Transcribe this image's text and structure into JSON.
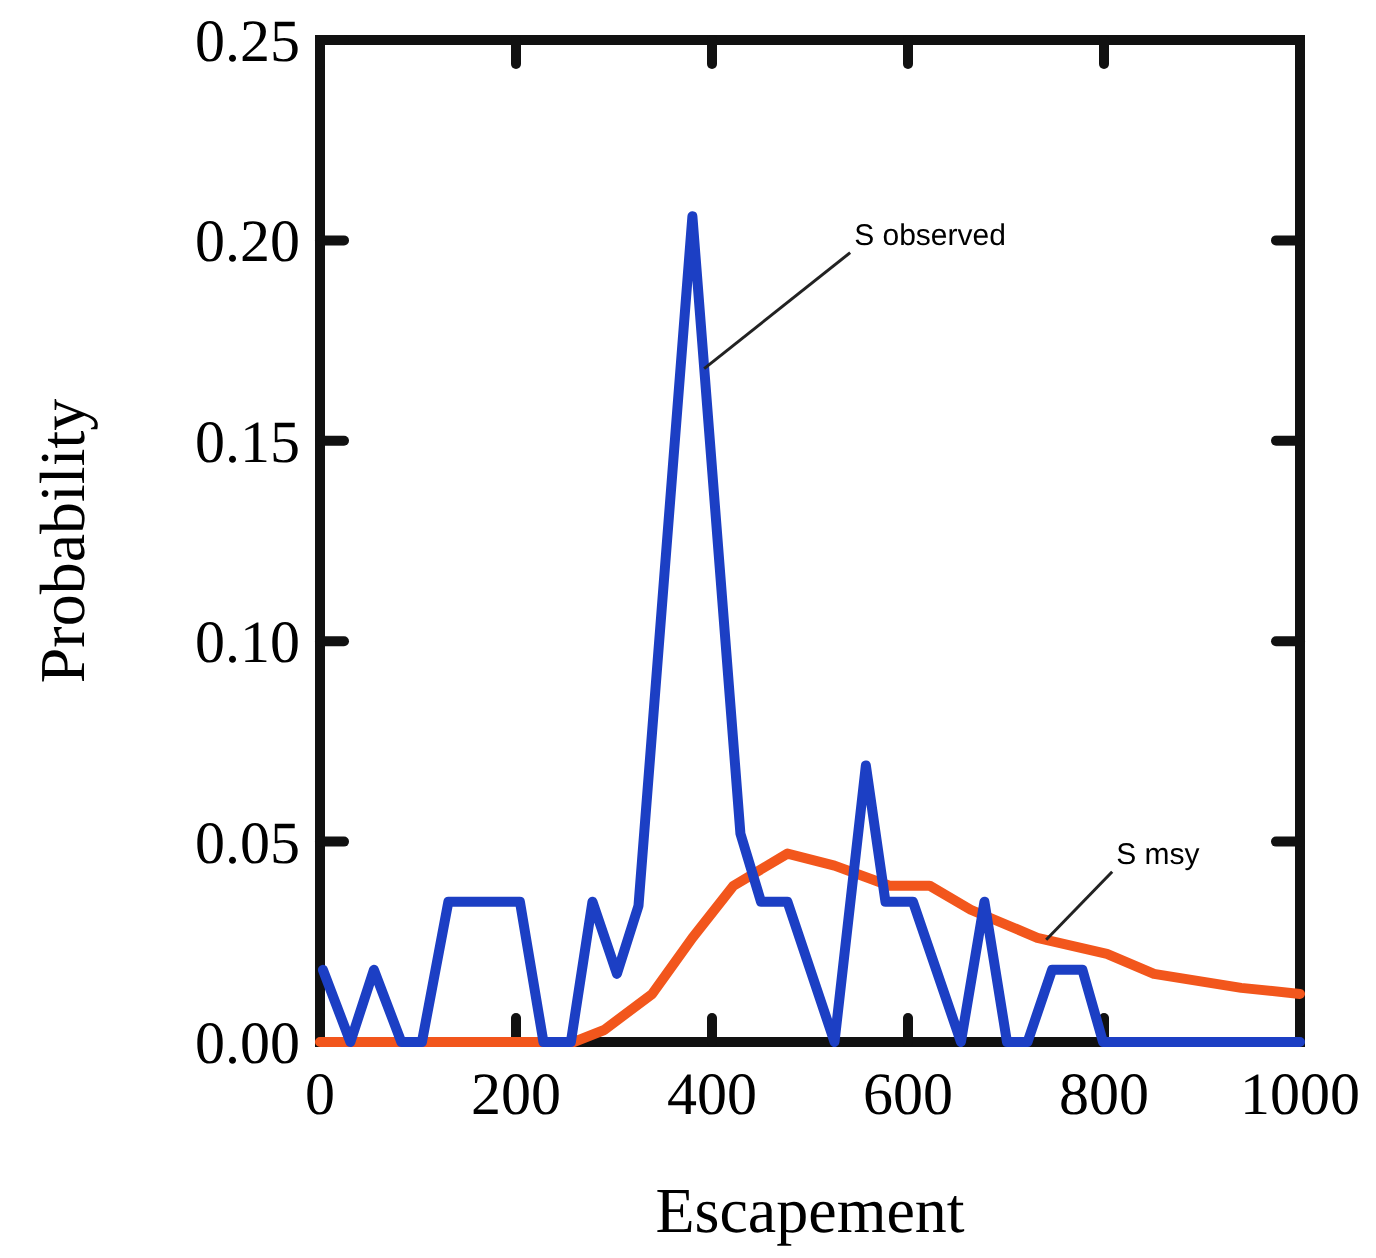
{
  "chart_data": {
    "type": "line",
    "xlabel": "Escapement",
    "ylabel": "Probability",
    "xlim": [
      0,
      1000
    ],
    "xticks": [
      0,
      200,
      400,
      600,
      800,
      1000
    ],
    "ylim": [
      0,
      0.25
    ],
    "yticks": [
      {
        "value": 0,
        "label": "0.00"
      },
      {
        "value": 0.05,
        "label": "0.05"
      },
      {
        "value": 0.1,
        "label": "0.10"
      },
      {
        "value": 0.15,
        "label": "0.15"
      },
      {
        "value": 0.2,
        "label": "0.20"
      },
      {
        "value": 0.25,
        "label": "0.25"
      }
    ],
    "grid": false,
    "marker": "none",
    "line_style": "solid",
    "series": [
      {
        "color": "#f2561c",
        "x": [
          0,
          259,
          290,
          339,
          380,
          422,
          477,
          525,
          581,
          622,
          664,
          732,
          803,
          851,
          940,
          1000
        ],
        "values": [
          0,
          0,
          0.003,
          0.012,
          0.026,
          0.039,
          0.047,
          0.044,
          0.039,
          0.039,
          0.033,
          0.026,
          0.022,
          0.017,
          0.0135,
          0.012
        ]
      },
      {
        "color": "#1c3fc4",
        "x": [
          3,
          31,
          55,
          83,
          104,
          131,
          204,
          228,
          256,
          278,
          303,
          325,
          380,
          429,
          450,
          477,
          525,
          557,
          577,
          605,
          654,
          678,
          701,
          722,
          747,
          778,
          799,
          1000
        ],
        "values": [
          0.018,
          0,
          0.018,
          0,
          0,
          0.035,
          0.035,
          0,
          0,
          0.035,
          0.017,
          0.034,
          0.206,
          0.052,
          0.035,
          0.035,
          0,
          0.069,
          0.035,
          0.035,
          0,
          0.035,
          0,
          0,
          0.018,
          0.018,
          0,
          0
        ]
      }
    ],
    "annotations": [
      {
        "text": "S observed",
        "x": 392,
        "y": 0.168
      },
      {
        "text": "S msy",
        "x": 741,
        "y": 0.0255
      }
    ]
  }
}
